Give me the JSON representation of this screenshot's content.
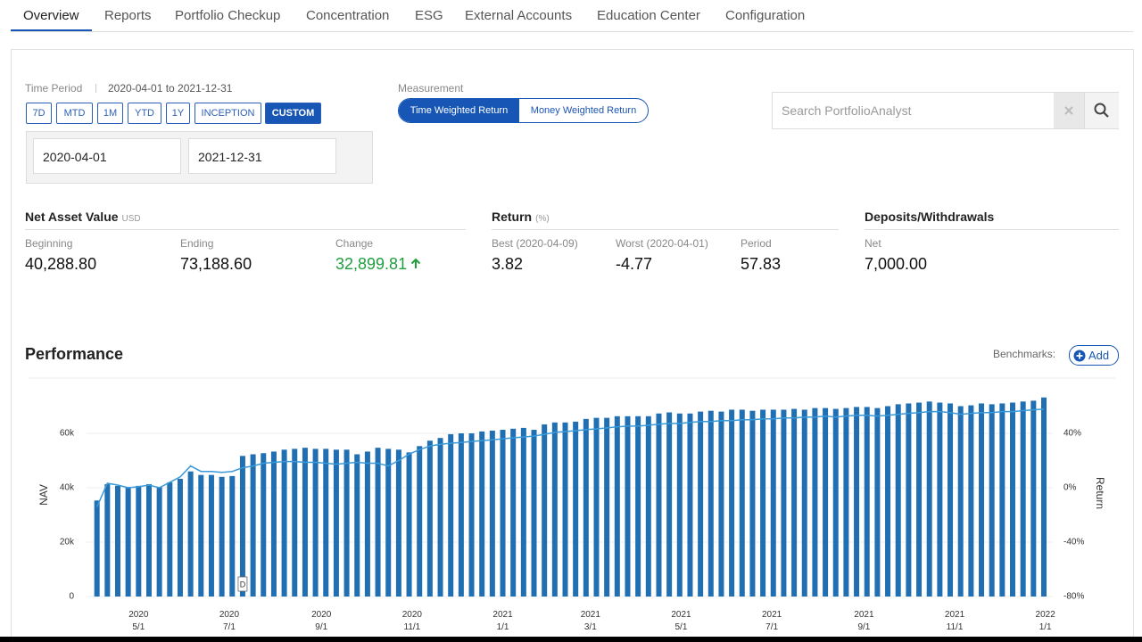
{
  "tabs": {
    "items": [
      "Overview",
      "Reports",
      "Portfolio Checkup",
      "Concentration",
      "ESG",
      "External Accounts",
      "Education Center",
      "Configuration"
    ],
    "active": 0
  },
  "time_period": {
    "label": "Time Period",
    "range": "2020-04-01 to 2021-12-31",
    "buttons": [
      "7D",
      "MTD",
      "1M",
      "YTD",
      "1Y",
      "INCEPTION",
      "CUSTOM"
    ],
    "active": 6,
    "start": "2020-04-01",
    "end": "2021-12-31"
  },
  "measurement": {
    "label": "Measurement",
    "options": [
      "Time Weighted Return",
      "Money Weighted Return"
    ],
    "active": 0
  },
  "search": {
    "placeholder": "Search PortfolioAnalyst"
  },
  "summary": {
    "nav": {
      "title": "Net Asset Value",
      "unit": "USD",
      "items": [
        {
          "label": "Beginning",
          "value": "40,288.80"
        },
        {
          "label": "Ending",
          "value": "73,188.60"
        },
        {
          "label": "Change",
          "value": "32,899.81",
          "color": "#1e9e3e"
        }
      ]
    },
    "return": {
      "title": "Return",
      "unit": "(%)",
      "items": [
        {
          "label": "Best (2020-04-09)",
          "value": "3.82"
        },
        {
          "label": "Worst (2020-04-01)",
          "value": "-4.77"
        },
        {
          "label": "Period",
          "value": "57.83"
        }
      ]
    },
    "deposits": {
      "title": "Deposits/Withdrawals",
      "items": [
        {
          "label": "Net",
          "value": "7,000.00"
        }
      ]
    }
  },
  "performance": {
    "title": "Performance",
    "benchmarks_label": "Benchmarks:",
    "add_button": "Add"
  },
  "chart_data": {
    "type": "bar",
    "x": [
      "2020-04-03",
      "2020-04-10",
      "2020-04-17",
      "2020-04-24",
      "2020-05-01",
      "2020-05-08",
      "2020-05-15",
      "2020-05-22",
      "2020-05-29",
      "2020-06-05",
      "2020-06-12",
      "2020-06-19",
      "2020-06-26",
      "2020-07-03",
      "2020-07-10",
      "2020-07-17",
      "2020-07-24",
      "2020-07-31",
      "2020-08-07",
      "2020-08-14",
      "2020-08-21",
      "2020-08-28",
      "2020-09-04",
      "2020-09-11",
      "2020-09-18",
      "2020-09-25",
      "2020-10-02",
      "2020-10-09",
      "2020-10-16",
      "2020-10-23",
      "2020-10-30",
      "2020-11-06",
      "2020-11-13",
      "2020-11-20",
      "2020-11-27",
      "2020-12-04",
      "2020-12-11",
      "2020-12-18",
      "2020-12-25",
      "2021-01-01",
      "2021-01-08",
      "2021-01-15",
      "2021-01-22",
      "2021-01-29",
      "2021-02-05",
      "2021-02-12",
      "2021-02-19",
      "2021-02-26",
      "2021-03-05",
      "2021-03-12",
      "2021-03-19",
      "2021-03-26",
      "2021-04-02",
      "2021-04-09",
      "2021-04-16",
      "2021-04-23",
      "2021-04-30",
      "2021-05-07",
      "2021-05-14",
      "2021-05-21",
      "2021-05-28",
      "2021-06-04",
      "2021-06-11",
      "2021-06-18",
      "2021-06-25",
      "2021-07-02",
      "2021-07-09",
      "2021-07-16",
      "2021-07-23",
      "2021-07-30",
      "2021-08-06",
      "2021-08-13",
      "2021-08-20",
      "2021-08-27",
      "2021-09-03",
      "2021-09-10",
      "2021-09-17",
      "2021-09-24",
      "2021-10-01",
      "2021-10-08",
      "2021-10-15",
      "2021-10-22",
      "2021-10-29",
      "2021-11-05",
      "2021-11-12",
      "2021-11-19",
      "2021-11-26",
      "2021-12-03",
      "2021-12-10",
      "2021-12-17",
      "2021-12-24",
      "2021-12-31"
    ],
    "series": [
      {
        "name": "NAV",
        "type": "bar",
        "color": "#1f6fb2",
        "values": [
          35300,
          41300,
          40700,
          40300,
          40700,
          41300,
          40300,
          42000,
          43300,
          46000,
          44700,
          44700,
          44000,
          44300,
          51700,
          52300,
          52700,
          53300,
          54000,
          54300,
          54700,
          54300,
          54300,
          54000,
          54000,
          52300,
          53300,
          54700,
          54300,
          54000,
          53000,
          55300,
          57300,
          58300,
          59700,
          60000,
          60000,
          60700,
          61000,
          61300,
          61700,
          62000,
          61300,
          63300,
          64000,
          64000,
          64300,
          65300,
          65700,
          65700,
          66300,
          66300,
          66300,
          66300,
          67300,
          67700,
          67300,
          67300,
          68000,
          68300,
          68000,
          68700,
          68700,
          68300,
          68700,
          68700,
          68700,
          69000,
          68700,
          69300,
          69300,
          69000,
          69300,
          69700,
          69700,
          69300,
          70000,
          70700,
          71000,
          71300,
          71700,
          71300,
          71000,
          70000,
          70300,
          71000,
          70700,
          71000,
          71300,
          71700,
          72000,
          73200
        ]
      },
      {
        "name": "Return",
        "type": "line",
        "axis": "y2",
        "color": "#3a9ad9",
        "values": [
          -14.0,
          3.3,
          2.0,
          0.0,
          0.7,
          2.0,
          0.0,
          4.0,
          8.0,
          16.0,
          12.0,
          12.0,
          11.3,
          12.0,
          14.7,
          16.0,
          18.0,
          18.7,
          19.3,
          19.3,
          18.7,
          18.7,
          18.0,
          17.3,
          18.0,
          18.7,
          18.0,
          18.0,
          16.0,
          20.0,
          24.7,
          28.0,
          30.7,
          32.0,
          32.7,
          33.3,
          34.0,
          34.7,
          35.3,
          36.0,
          36.7,
          37.3,
          38.0,
          39.3,
          40.7,
          41.3,
          42.0,
          42.7,
          43.3,
          44.0,
          44.7,
          45.3,
          45.3,
          46.0,
          46.7,
          47.3,
          47.3,
          48.0,
          48.7,
          48.7,
          49.3,
          49.3,
          50.0,
          50.0,
          50.7,
          50.7,
          51.3,
          51.3,
          52.0,
          52.0,
          52.7,
          52.0,
          52.7,
          53.3,
          53.3,
          52.7,
          53.3,
          54.0,
          54.7,
          55.3,
          56.0,
          56.0,
          55.3,
          54.0,
          54.7,
          55.3,
          55.3,
          56.0,
          56.0,
          56.7,
          57.3,
          57.83
        ]
      }
    ],
    "xlim": [
      "2020-03-27",
      "2022-01-06"
    ],
    "xticks": [
      {
        "value": "2020-05-01",
        "label": "2020\n5/1"
      },
      {
        "value": "2020-07-01",
        "label": "2020\n7/1"
      },
      {
        "value": "2020-09-01",
        "label": "2020\n9/1"
      },
      {
        "value": "2020-11-01",
        "label": "2020\n11/1"
      },
      {
        "value": "2021-01-01",
        "label": "2021\n1/1"
      },
      {
        "value": "2021-03-01",
        "label": "2021\n3/1"
      },
      {
        "value": "2021-05-01",
        "label": "2021\n5/1"
      },
      {
        "value": "2021-07-01",
        "label": "2021\n7/1"
      },
      {
        "value": "2021-09-01",
        "label": "2021\n9/1"
      },
      {
        "value": "2021-11-01",
        "label": "2021\n11/1"
      },
      {
        "value": "2022-01-01",
        "label": "2022\n1/1"
      }
    ],
    "ylim": [
      0,
      80000
    ],
    "yticks": [
      0,
      {
        "value": 20000,
        "label": "20k"
      },
      {
        "value": 40000,
        "label": "40k"
      },
      {
        "value": 60000,
        "label": "60k"
      }
    ],
    "y2lim": [
      -80,
      80
    ],
    "y2ticks": [
      {
        "value": -80,
        "label": "-80%"
      },
      {
        "value": -40,
        "label": "-40%"
      },
      {
        "value": 0,
        "label": "0%"
      },
      {
        "value": 40,
        "label": "40%"
      }
    ],
    "grid": true,
    "annotations": [
      {
        "text": "D",
        "x": "2020-07-10"
      }
    ]
  }
}
